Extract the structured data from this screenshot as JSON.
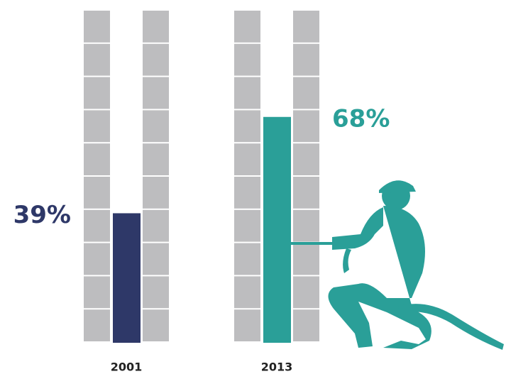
{
  "chart_data": {
    "type": "bar",
    "categories": [
      "2001",
      "2013"
    ],
    "values": [
      39,
      68
    ],
    "value_labels": [
      "39%",
      "68%"
    ],
    "colors": [
      "#2e3868",
      "#2a9f98"
    ],
    "ylim": [
      0,
      100
    ]
  }
}
